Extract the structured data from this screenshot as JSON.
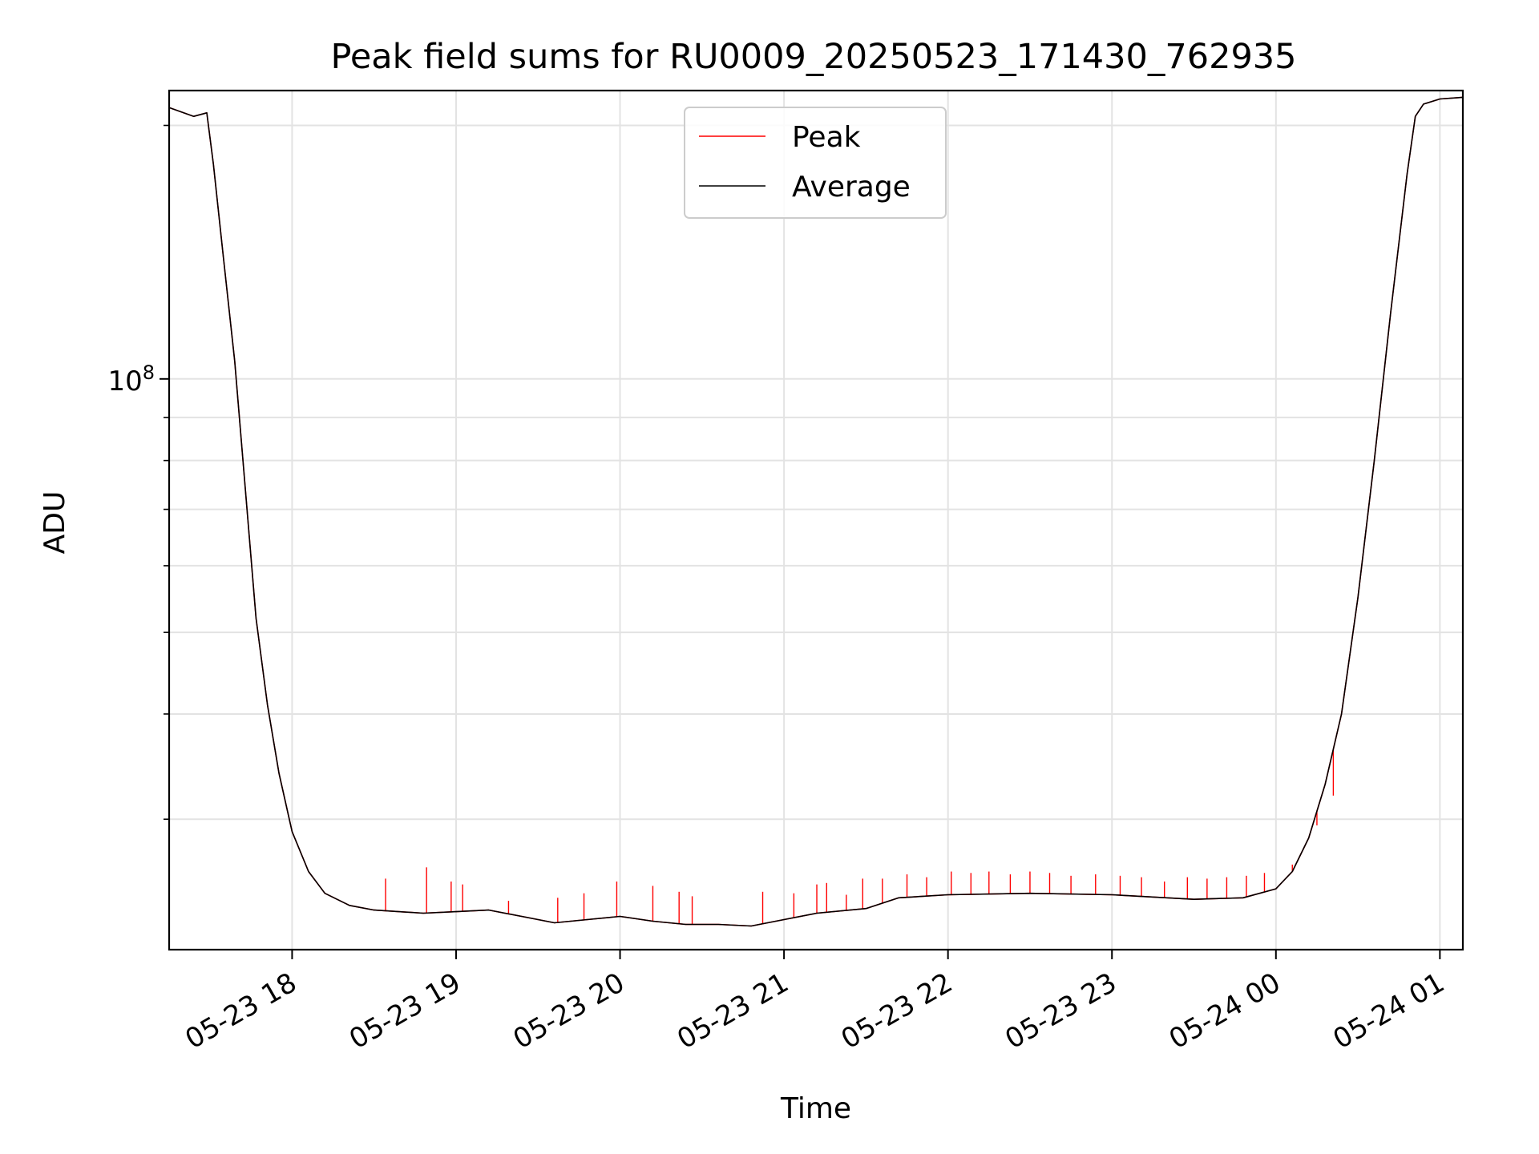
{
  "chart_data": {
    "type": "line",
    "title": "Peak field sums for RU0009_20250523_171430_762935",
    "xlabel": "Time",
    "ylabel": "ADU",
    "yscale": "log",
    "ylim": [
      21000000,
      220000000
    ],
    "xlim": [
      17.25,
      25.14
    ],
    "x_unit": "hours since 2025-05-23 00:00",
    "grid": true,
    "legend": {
      "location": "top-center",
      "entries": [
        "Peak",
        "Average"
      ]
    },
    "x_ticks": [
      {
        "value": 18,
        "label": "05-23 18"
      },
      {
        "value": 19,
        "label": "05-23 19"
      },
      {
        "value": 20,
        "label": "05-23 20"
      },
      {
        "value": 21,
        "label": "05-23 21"
      },
      {
        "value": 22,
        "label": "05-23 22"
      },
      {
        "value": 23,
        "label": "05-23 23"
      },
      {
        "value": 24,
        "label": "05-24 00"
      },
      {
        "value": 25,
        "label": "05-24 01"
      }
    ],
    "y_major_ticks": [
      {
        "value": 100000000,
        "label_base": "10",
        "label_exp": "8"
      }
    ],
    "y_minor_ticks": [
      30000000,
      40000000,
      50000000,
      60000000,
      70000000,
      80000000,
      90000000,
      200000000
    ],
    "series": [
      {
        "name": "Average",
        "color": "#000000",
        "x": [
          17.25,
          17.4,
          17.48,
          17.52,
          17.58,
          17.65,
          17.72,
          17.78,
          17.85,
          17.92,
          18.0,
          18.1,
          18.2,
          18.35,
          18.5,
          18.8,
          19.0,
          19.2,
          19.4,
          19.6,
          19.8,
          20.0,
          20.2,
          20.4,
          20.6,
          20.8,
          21.0,
          21.2,
          21.5,
          21.7,
          22.0,
          22.5,
          23.0,
          23.5,
          23.8,
          24.0,
          24.1,
          24.2,
          24.3,
          24.4,
          24.5,
          24.6,
          24.7,
          24.8,
          24.85,
          24.9,
          25.0,
          25.14
        ],
        "y": [
          210000000,
          205000000,
          207000000,
          180000000,
          140000000,
          105000000,
          72000000,
          52000000,
          41000000,
          34000000,
          29000000,
          26000000,
          24500000,
          23700000,
          23400000,
          23200000,
          23300000,
          23400000,
          23000000,
          22600000,
          22800000,
          23000000,
          22700000,
          22500000,
          22500000,
          22400000,
          22800000,
          23200000,
          23500000,
          24200000,
          24400000,
          24500000,
          24400000,
          24100000,
          24200000,
          24800000,
          26000000,
          28500000,
          33000000,
          40000000,
          55000000,
          80000000,
          120000000,
          175000000,
          205000000,
          212000000,
          215000000,
          216000000
        ]
      },
      {
        "name": "Peak",
        "color": "#ff0000",
        "x": [
          17.25,
          17.4,
          17.48,
          17.52,
          17.58,
          17.65,
          17.72,
          17.78,
          17.85,
          17.92,
          18.0,
          18.1,
          18.2,
          18.35,
          18.5,
          18.8,
          19.0,
          19.2,
          19.4,
          19.6,
          19.8,
          20.0,
          20.2,
          20.4,
          20.6,
          20.8,
          21.0,
          21.2,
          21.5,
          21.7,
          22.0,
          22.5,
          23.0,
          23.5,
          23.8,
          24.0,
          24.1,
          24.2,
          24.3,
          24.4,
          24.5,
          24.6,
          24.7,
          24.8,
          24.85,
          24.9,
          25.0,
          25.14
        ],
        "y": [
          210000000,
          205000000,
          207000000,
          180000000,
          140000000,
          105000000,
          72000000,
          52000000,
          41000000,
          34000000,
          29000000,
          26000000,
          24500000,
          23700000,
          23400000,
          23200000,
          23300000,
          23400000,
          23000000,
          22600000,
          22800000,
          23000000,
          22700000,
          22500000,
          22500000,
          22400000,
          22800000,
          23200000,
          23500000,
          24200000,
          24400000,
          24500000,
          24400000,
          24100000,
          24200000,
          24800000,
          26000000,
          28500000,
          33000000,
          40000000,
          55000000,
          80000000,
          120000000,
          175000000,
          205000000,
          212000000,
          215000000,
          216000000
        ],
        "spikes": [
          [
            18.57,
            25500000
          ],
          [
            18.82,
            26300000
          ],
          [
            18.97,
            25300000
          ],
          [
            19.04,
            25100000
          ],
          [
            19.32,
            24000000
          ],
          [
            19.62,
            24200000
          ],
          [
            19.78,
            24500000
          ],
          [
            19.98,
            25300000
          ],
          [
            20.2,
            25000000
          ],
          [
            20.36,
            24600000
          ],
          [
            20.44,
            24300000
          ],
          [
            20.87,
            24600000
          ],
          [
            21.06,
            24500000
          ],
          [
            21.2,
            25100000
          ],
          [
            21.26,
            25200000
          ],
          [
            21.38,
            24400000
          ],
          [
            21.48,
            25500000
          ],
          [
            21.6,
            25500000
          ],
          [
            21.75,
            25800000
          ],
          [
            21.87,
            25600000
          ],
          [
            22.02,
            26000000
          ],
          [
            22.14,
            25900000
          ],
          [
            22.25,
            26000000
          ],
          [
            22.38,
            25800000
          ],
          [
            22.5,
            26000000
          ],
          [
            22.62,
            25900000
          ],
          [
            22.75,
            25700000
          ],
          [
            22.9,
            25800000
          ],
          [
            23.05,
            25700000
          ],
          [
            23.18,
            25600000
          ],
          [
            23.32,
            25300000
          ],
          [
            23.46,
            25600000
          ],
          [
            23.58,
            25500000
          ],
          [
            23.7,
            25600000
          ],
          [
            23.82,
            25700000
          ],
          [
            23.93,
            25900000
          ],
          [
            24.1,
            26500000
          ],
          [
            24.25,
            29500000
          ],
          [
            24.35,
            32000000
          ]
        ]
      }
    ]
  }
}
